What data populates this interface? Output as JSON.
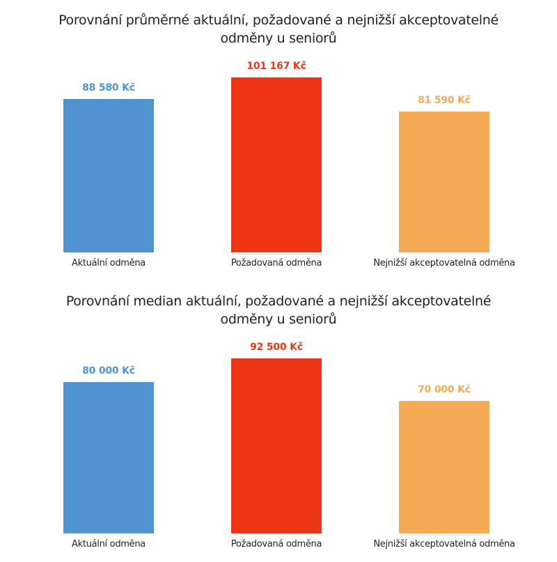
{
  "chart_data": [
    {
      "type": "bar",
      "title": "Porovnání průměrné aktuální, požadované a nejnižší akceptovatelné odměny u seniorů",
      "title_lines": [
        "Porovnání průměrné aktuální, požadované a nejnižší akceptovatelné",
        "odměny u seniorů"
      ],
      "categories": [
        "Aktuální odměna",
        "Požadovaná odměna",
        "Nejnižší akceptovatelná odměna"
      ],
      "values": [
        88580,
        101167,
        81590
      ],
      "value_labels": [
        "88 580 Kč",
        "101 167 Kč",
        "81 590 Kč"
      ],
      "colors": [
        "#4f94d0",
        "#ed3416",
        "#f5a953"
      ],
      "xlabel": "",
      "ylabel": "",
      "ylim": [
        0,
        101167
      ],
      "grid": false,
      "legend": "none"
    },
    {
      "type": "bar",
      "title": "Porovnání median aktuální, požadované a nejnižší akceptovatelné odměny u seniorů",
      "title_lines": [
        "Porovnání median aktuální, požadované a nejnižší akceptovatelné",
        "odměny u seniorů"
      ],
      "categories": [
        "Aktuální odměna",
        "Požadovaná odměna",
        "Nejnižší akceptovatelná odměna"
      ],
      "values": [
        80000,
        92500,
        70000
      ],
      "value_labels": [
        "80 000 Kč",
        "92 500 Kč",
        "70 000 Kč"
      ],
      "colors": [
        "#4f94d0",
        "#ed3416",
        "#f5a953"
      ],
      "xlabel": "",
      "ylabel": "",
      "ylim": [
        0,
        92500
      ],
      "grid": false,
      "legend": "none"
    }
  ]
}
